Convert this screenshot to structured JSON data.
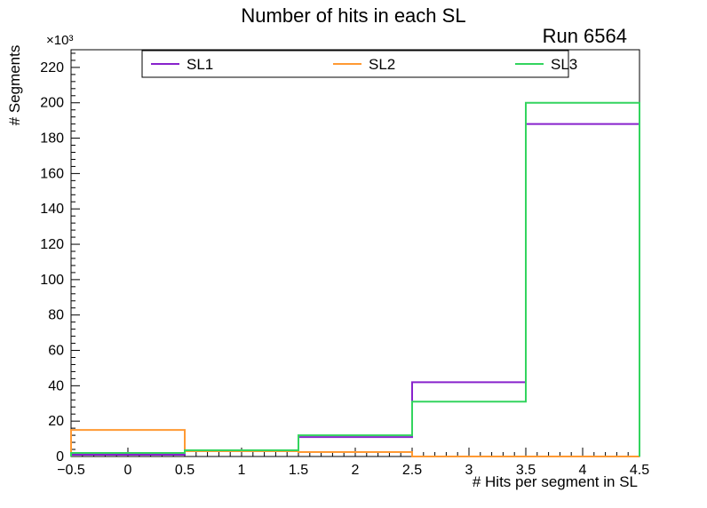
{
  "header": {
    "title": "Number of hits in each SL",
    "run_label": "Run 6564"
  },
  "chart_data": {
    "type": "step-histogram",
    "title": "Number of hits in each SL",
    "annotation": "Run 6564",
    "xlabel": "# Hits per segment in SL",
    "ylabel": "# Segments",
    "y_multiplier": "×10³",
    "xlim": [
      -0.5,
      4.5
    ],
    "ylim": [
      0,
      230
    ],
    "y_unit": "thousands of segments",
    "bin_edges": [
      -0.5,
      0.5,
      1.5,
      2.5,
      3.5,
      4.5
    ],
    "x_ticks": [
      -0.5,
      0,
      0.5,
      1,
      1.5,
      2,
      2.5,
      3,
      3.5,
      4,
      4.5
    ],
    "y_ticks": [
      0,
      20,
      40,
      60,
      80,
      100,
      120,
      140,
      160,
      180,
      200,
      220
    ],
    "grid": false,
    "series": [
      {
        "name": "SL1",
        "color": "#8822cc",
        "values_k": [
          1,
          3,
          11,
          42,
          188
        ]
      },
      {
        "name": "SL2",
        "color": "#ff9933",
        "values_k": [
          15,
          3,
          2.5,
          0,
          0
        ]
      },
      {
        "name": "SL3",
        "color": "#33d45e",
        "values_k": [
          2,
          3.5,
          12,
          31,
          200
        ]
      }
    ],
    "legend": {
      "position": "top",
      "entries": [
        "SL1",
        "SL2",
        "SL3"
      ]
    }
  }
}
